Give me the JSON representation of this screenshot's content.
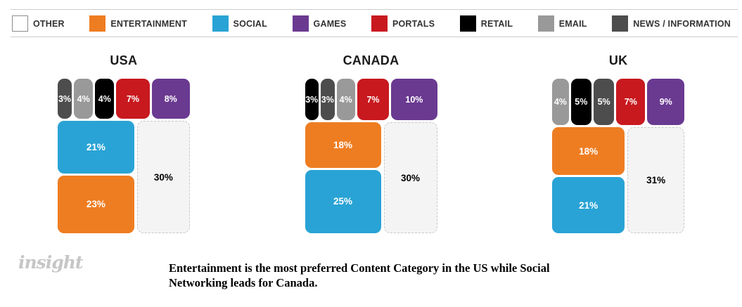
{
  "chart_data": {
    "type": "treemap",
    "unit": "%",
    "legend_position": "top",
    "categories": [
      {
        "id": "other",
        "label": "OTHER",
        "color": "#FFFFFF",
        "block_color": "#F4F4F4",
        "label_color": "#000000"
      },
      {
        "id": "entertainment",
        "label": "ENTERTAINMENT",
        "color": "#EE7D22",
        "block_color": "#EE7D22",
        "label_color": "#FFFFFF"
      },
      {
        "id": "social",
        "label": "SOCIAL",
        "color": "#29A3D5",
        "block_color": "#29A3D5",
        "label_color": "#FFFFFF"
      },
      {
        "id": "games",
        "label": "GAMES",
        "color": "#6A3A91",
        "block_color": "#6A3A91",
        "label_color": "#FFFFFF"
      },
      {
        "id": "portals",
        "label": "PORTALS",
        "color": "#C8191F",
        "block_color": "#C8191F",
        "label_color": "#FFFFFF"
      },
      {
        "id": "retail",
        "label": "RETAIL",
        "color": "#000000",
        "block_color": "#000000",
        "label_color": "#FFFFFF"
      },
      {
        "id": "email",
        "label": "EMAIL",
        "color": "#999999",
        "block_color": "#999999",
        "label_color": "#FFFFFF"
      },
      {
        "id": "news",
        "label": "NEWS / INFORMATION",
        "color": "#4D4D4D",
        "block_color": "#4D4D4D",
        "label_color": "#FFFFFF"
      }
    ],
    "charts": [
      {
        "title": "USA",
        "top_row": [
          {
            "category": "news",
            "value": 3
          },
          {
            "category": "email",
            "value": 4
          },
          {
            "category": "retail",
            "value": 4
          },
          {
            "category": "portals",
            "value": 7
          },
          {
            "category": "games",
            "value": 8
          }
        ],
        "left_column": [
          {
            "category": "social",
            "value": 21
          },
          {
            "category": "entertainment",
            "value": 23
          }
        ],
        "right_block": {
          "category": "other",
          "value": 30
        }
      },
      {
        "title": "CANADA",
        "top_row": [
          {
            "category": "retail",
            "value": 3
          },
          {
            "category": "news",
            "value": 3
          },
          {
            "category": "email",
            "value": 4
          },
          {
            "category": "portals",
            "value": 7
          },
          {
            "category": "games",
            "value": 10
          }
        ],
        "left_column": [
          {
            "category": "entertainment",
            "value": 18
          },
          {
            "category": "social",
            "value": 25
          }
        ],
        "right_block": {
          "category": "other",
          "value": 30
        }
      },
      {
        "title": "UK",
        "top_row": [
          {
            "category": "email",
            "value": 4
          },
          {
            "category": "retail",
            "value": 5
          },
          {
            "category": "news",
            "value": 5
          },
          {
            "category": "portals",
            "value": 7
          },
          {
            "category": "games",
            "value": 9
          }
        ],
        "left_column": [
          {
            "category": "entertainment",
            "value": 18
          },
          {
            "category": "social",
            "value": 21
          }
        ],
        "right_block": {
          "category": "other",
          "value": 31
        }
      }
    ]
  },
  "footer": {
    "logo": "insight",
    "caption": "Entertainment is the most preferred Content Category in the US while Social Networking leads for Canada."
  },
  "colors": {
    "legend_border": "#CCCCCC",
    "other_block_border": "#C9C9C9",
    "title_text": "#1A1A1A",
    "legend_text": "#333333",
    "logo_text": "#C6C6C6"
  }
}
